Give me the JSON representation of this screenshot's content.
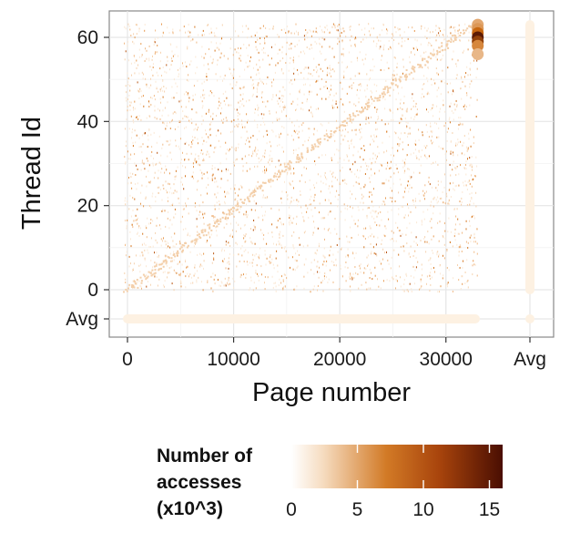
{
  "chart_data": {
    "type": "heatmap",
    "title": "",
    "xlabel": "Page number",
    "ylabel": "Thread Id",
    "xlim": [
      -1500,
      34500
    ],
    "ylim": [
      -4.5,
      66
    ],
    "x_ticks": [
      {
        "value": 0,
        "label": "0"
      },
      {
        "value": 10000,
        "label": "10000"
      },
      {
        "value": 20000,
        "label": "20000"
      },
      {
        "value": 30000,
        "label": "30000"
      }
    ],
    "x_extra_tick": {
      "label": "Avg"
    },
    "y_ticks": [
      {
        "value": 0,
        "label": "0"
      },
      {
        "value": 20,
        "label": "20"
      },
      {
        "value": 40,
        "label": "40"
      },
      {
        "value": 60,
        "label": "60"
      }
    ],
    "y_extra_tick": {
      "label": "Avg"
    },
    "page_range": [
      0,
      32768
    ],
    "thread_range": [
      0,
      63
    ],
    "avg_row_value": 0.4,
    "avg_column_value": 0.4,
    "hot_column": {
      "page": 33000,
      "points": [
        {
          "thread": 63,
          "value": 5
        },
        {
          "thread": 62,
          "value": 6
        },
        {
          "thread": 61,
          "value": 9
        },
        {
          "thread": 60,
          "value": 15
        },
        {
          "thread": 59,
          "value": 12
        },
        {
          "thread": 58,
          "value": 7
        },
        {
          "thread": 56,
          "value": 4
        }
      ]
    },
    "grid": true,
    "legend": {
      "title_lines": [
        "Number of",
        "accesses",
        "(x10^3)"
      ],
      "ticks": [
        {
          "value": 0,
          "label": "0"
        },
        {
          "value": 5,
          "label": "5"
        },
        {
          "value": 10,
          "label": "10"
        },
        {
          "value": 15,
          "label": "15"
        }
      ],
      "range": [
        0,
        16
      ],
      "placement": "bottom"
    },
    "colors": {
      "low": "#fff7ec",
      "mid": "#cc6a10",
      "high": "#4a0e02",
      "panel_border": "#888888",
      "grid": "#e8e8e8"
    }
  }
}
